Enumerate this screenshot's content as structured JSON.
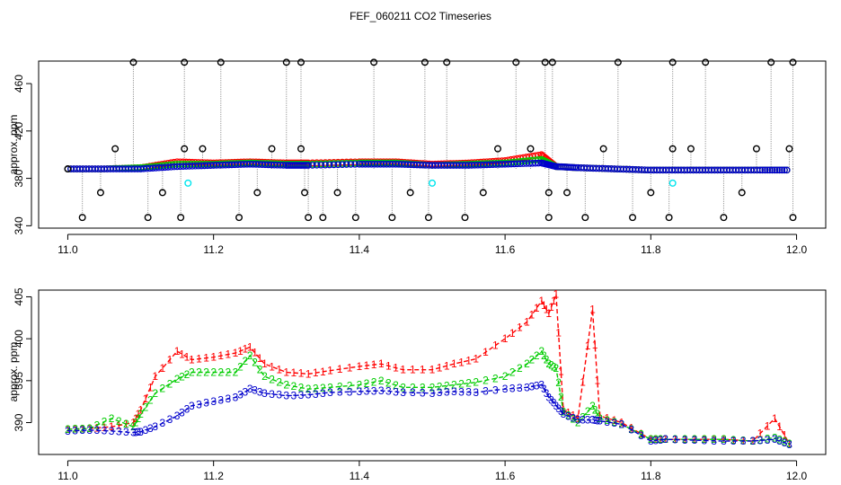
{
  "title": "FEF_060211  CO2 Timeseries",
  "chart_data": [
    {
      "type": "scatter",
      "ylabel": "approx. ppm",
      "xlabel": "",
      "xlim": [
        10.96,
        12.04
      ],
      "ylim": [
        338,
        479
      ],
      "xticks": [
        11.0,
        11.2,
        11.4,
        11.6,
        11.8,
        12.0
      ],
      "yticks": [
        340,
        380,
        420,
        460
      ],
      "xtick_labels": [
        "11.0",
        "11.2",
        "11.4",
        "11.6",
        "11.8",
        "12.0"
      ],
      "ytick_labels": [
        "340",
        "380",
        "420",
        "460"
      ],
      "colors": {
        "series1": "#ff0000",
        "series2": "#00cc00",
        "series3": "#0000cc",
        "outlier": "#000000",
        "flag": "#00e5ee",
        "spike_line": "#999999"
      },
      "series": [
        {
          "name": "1",
          "x": [
            11.0,
            11.05,
            11.1,
            11.15,
            11.2,
            11.25,
            11.3,
            11.33,
            11.4,
            11.45,
            11.5,
            11.55,
            11.6,
            11.65,
            11.67,
            11.7,
            11.75,
            11.8,
            11.85,
            11.9,
            11.95,
            11.99
          ],
          "y": [
            388,
            388,
            389,
            394,
            393,
            394,
            393,
            393,
            394,
            394,
            392,
            393,
            395,
            400,
            390,
            389,
            388,
            387,
            387,
            387,
            387,
            387
          ]
        },
        {
          "name": "2",
          "x": [
            11.0,
            11.05,
            11.1,
            11.15,
            11.2,
            11.25,
            11.3,
            11.33,
            11.4,
            11.45,
            11.5,
            11.55,
            11.6,
            11.65,
            11.67,
            11.7,
            11.75,
            11.8,
            11.85,
            11.9,
            11.95,
            11.99
          ],
          "y": [
            388,
            388,
            389,
            392,
            392,
            393,
            392,
            392,
            393,
            393,
            391,
            392,
            393,
            396,
            390,
            389,
            388,
            387,
            387,
            387,
            387,
            387
          ]
        },
        {
          "name": "3",
          "x": [
            11.0,
            11.05,
            11.1,
            11.15,
            11.2,
            11.25,
            11.3,
            11.33,
            11.4,
            11.45,
            11.5,
            11.55,
            11.6,
            11.65,
            11.67,
            11.7,
            11.75,
            11.8,
            11.85,
            11.9,
            11.95,
            11.99
          ],
          "y": [
            388,
            388,
            388,
            390,
            391,
            392,
            391,
            391,
            392,
            392,
            391,
            391,
            392,
            393,
            390,
            389,
            388,
            387,
            387,
            387,
            387,
            387
          ]
        }
      ],
      "outliers": {
        "x": [
          11.0,
          11.02,
          11.045,
          11.065,
          11.09,
          11.11,
          11.13,
          11.155,
          11.16,
          11.16,
          11.185,
          11.21,
          11.235,
          11.26,
          11.28,
          11.3,
          11.32,
          11.32,
          11.325,
          11.33,
          11.35,
          11.37,
          11.395,
          11.42,
          11.445,
          11.47,
          11.49,
          11.495,
          11.52,
          11.545,
          11.57,
          11.59,
          11.615,
          11.635,
          11.655,
          11.66,
          11.66,
          11.665,
          11.685,
          11.71,
          11.735,
          11.755,
          11.775,
          11.8,
          11.825,
          11.83,
          11.83,
          11.855,
          11.875,
          11.9,
          11.925,
          11.945,
          11.965,
          11.99,
          11.995,
          11.995
        ],
        "y": [
          388,
          347,
          368,
          405,
          478,
          347,
          368,
          347,
          405,
          478,
          405,
          478,
          347,
          368,
          405,
          478,
          405,
          478,
          368,
          347,
          347,
          368,
          347,
          478,
          347,
          368,
          478,
          347,
          478,
          347,
          368,
          405,
          478,
          405,
          478,
          368,
          347,
          478,
          368,
          347,
          405,
          478,
          347,
          368,
          347,
          478,
          405,
          405,
          478,
          347,
          368,
          405,
          478,
          405,
          478,
          347
        ]
      },
      "flags": {
        "x": [
          11.165,
          11.5,
          11.83
        ],
        "y": [
          376,
          376,
          376
        ]
      }
    },
    {
      "type": "line",
      "ylabel": "approx. ppm",
      "xlabel": "",
      "xlim": [
        10.96,
        12.04
      ],
      "ylim": [
        386.2,
        405.8
      ],
      "xticks": [
        11.0,
        11.2,
        11.4,
        11.6,
        11.8,
        12.0
      ],
      "yticks": [
        390,
        395,
        400,
        405
      ],
      "xtick_labels": [
        "11.0",
        "11.2",
        "11.4",
        "11.6",
        "11.8",
        "12.0"
      ],
      "ytick_labels": [
        "390",
        "395",
        "400",
        "405"
      ],
      "colors": {
        "series1": "#ff0000",
        "series2": "#00cc00",
        "series3": "#0000cc"
      },
      "series": [
        {
          "name": "1",
          "x": [
            11.0,
            11.03,
            11.06,
            11.09,
            11.1,
            11.12,
            11.15,
            11.17,
            11.2,
            11.23,
            11.25,
            11.27,
            11.3,
            11.33,
            11.36,
            11.4,
            11.43,
            11.46,
            11.5,
            11.53,
            11.56,
            11.6,
            11.63,
            11.65,
            11.66,
            11.67,
            11.68,
            11.7,
            11.72,
            11.73,
            11.76,
            11.8,
            11.82,
            11.86,
            11.9,
            11.94,
            11.97,
            11.99
          ],
          "y": [
            389.2,
            389.3,
            389.5,
            390.0,
            391.5,
            395.5,
            398.5,
            397.5,
            397.8,
            398.3,
            399.0,
            397.0,
            396.0,
            395.8,
            396.2,
            396.7,
            397.0,
            396.3,
            396.3,
            397.0,
            397.6,
            400.0,
            402.0,
            404.5,
            403.0,
            405.3,
            391.5,
            390.5,
            403.5,
            390.8,
            390.0,
            388.0,
            388.0,
            388.0,
            388.0,
            387.8,
            390.5,
            387.5
          ]
        },
        {
          "name": "2",
          "x": [
            11.0,
            11.03,
            11.06,
            11.09,
            11.1,
            11.12,
            11.15,
            11.17,
            11.2,
            11.23,
            11.25,
            11.27,
            11.3,
            11.33,
            11.36,
            11.4,
            11.43,
            11.46,
            11.5,
            11.53,
            11.56,
            11.6,
            11.63,
            11.65,
            11.66,
            11.67,
            11.68,
            11.7,
            11.72,
            11.73,
            11.76,
            11.8,
            11.82,
            11.86,
            11.9,
            11.94,
            11.97,
            11.99
          ],
          "y": [
            389.2,
            389.3,
            390.5,
            389.5,
            391.0,
            393.5,
            395.2,
            396.0,
            396.0,
            396.0,
            398.0,
            395.5,
            394.5,
            394.0,
            394.2,
            394.5,
            395.0,
            394.2,
            394.2,
            394.5,
            394.8,
            395.5,
            397.0,
            398.5,
            397.0,
            396.5,
            391.3,
            390.0,
            392.0,
            390.5,
            389.8,
            388.0,
            388.0,
            388.0,
            388.0,
            387.8,
            388.2,
            387.5
          ]
        },
        {
          "name": "3",
          "x": [
            11.0,
            11.03,
            11.06,
            11.09,
            11.1,
            11.12,
            11.15,
            11.17,
            11.2,
            11.23,
            11.25,
            11.27,
            11.3,
            11.33,
            11.36,
            11.4,
            11.43,
            11.46,
            11.5,
            11.53,
            11.56,
            11.6,
            11.63,
            11.65,
            11.66,
            11.67,
            11.68,
            11.7,
            11.72,
            11.73,
            11.76,
            11.8,
            11.82,
            11.86,
            11.9,
            11.94,
            11.97,
            11.99
          ],
          "y": [
            389.0,
            389.1,
            389.0,
            388.8,
            388.9,
            389.5,
            390.8,
            392.0,
            392.5,
            393.0,
            394.0,
            393.5,
            393.2,
            393.3,
            393.6,
            393.7,
            393.8,
            393.6,
            393.5,
            393.7,
            393.6,
            394.0,
            394.2,
            394.5,
            393.0,
            392.0,
            391.0,
            390.3,
            390.3,
            390.2,
            389.8,
            387.8,
            388.0,
            387.9,
            387.8,
            387.8,
            388.0,
            387.4
          ]
        }
      ]
    }
  ]
}
